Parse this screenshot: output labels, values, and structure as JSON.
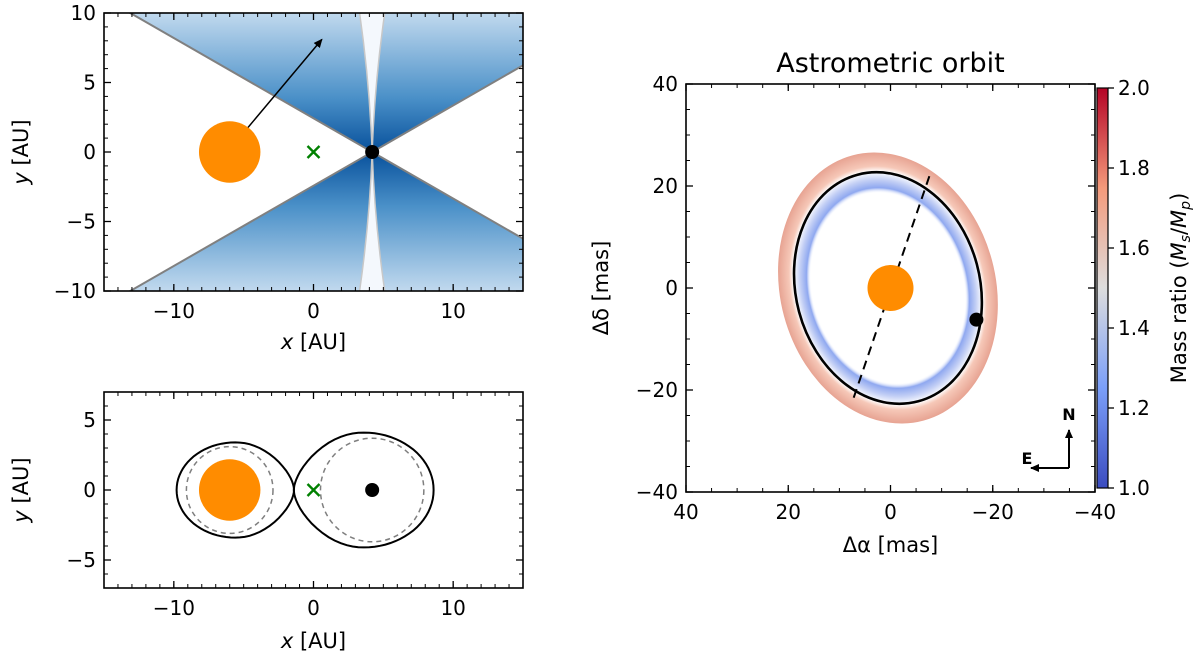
{
  "colors": {
    "star": "#ff8c00",
    "companion": "#000000",
    "center_of_mass": "#008000",
    "wedge_dark": "#08519c",
    "wedge_light": "#c6dbef",
    "roche_solid": "#000000",
    "roche_dashed": "#7f7f7f",
    "cmap_low": "#3b4cc0",
    "cmap_mid": "#dddddd",
    "cmap_high": "#b40426"
  },
  "chart_data": [
    {
      "id": "geometry",
      "type": "scatter",
      "title": "",
      "xlabel": "x [AU]",
      "ylabel": "y [AU]",
      "xlim": [
        -15,
        15
      ],
      "ylim": [
        -10,
        10
      ],
      "xticks": [
        -10,
        0,
        10
      ],
      "yticks": [
        -10,
        -5,
        0,
        5,
        10
      ],
      "tick_labels_x": [
        "−10",
        "0",
        "10"
      ],
      "tick_labels_y": [
        "−10",
        "−5",
        "0",
        "5",
        "10"
      ],
      "xlabel_var": "x",
      "xlabel_unit": " [AU]",
      "ylabel_var": "y",
      "ylabel_unit": " [AU]",
      "star": {
        "x": -6,
        "y": 0,
        "radius": 2.2
      },
      "companion": {
        "x": 4.2,
        "y": 0
      },
      "center_of_mass": {
        "x": 0,
        "y": 0,
        "symbol": "×"
      },
      "arrow": {
        "from": [
          -6,
          0
        ],
        "to": [
          0.6,
          8.1
        ]
      },
      "shadow_wedges": {
        "apex_x": 4.2,
        "apex_y": 0,
        "half_angle_deg": 30,
        "gap_half_width_at_edge": 0.9
      }
    },
    {
      "id": "roche",
      "type": "line",
      "title": "",
      "xlabel": "x [AU]",
      "ylabel": "y [AU]",
      "xlim": [
        -15,
        15
      ],
      "ylim": [
        -7,
        7
      ],
      "xticks": [
        -10,
        0,
        10
      ],
      "yticks": [
        -5,
        0,
        5
      ],
      "tick_labels_x": [
        "−10",
        "0",
        "10"
      ],
      "tick_labels_y": [
        "−5",
        "0",
        "5"
      ],
      "xlabel_var": "x",
      "xlabel_unit": " [AU]",
      "ylabel_var": "y",
      "ylabel_unit": " [AU]",
      "star": {
        "x": -6,
        "y": 0,
        "radius": 2.2
      },
      "companion": {
        "x": 4.2,
        "y": 0
      },
      "center_of_mass": {
        "x": 0,
        "y": 0,
        "symbol": "×"
      },
      "roche_lobe_star": {
        "center_x": -5.6,
        "half_width": 4.2,
        "half_height": 3.4,
        "l1_x": -1.4
      },
      "roche_lobe_companion": {
        "center_x": 3.6,
        "half_width": 5.0,
        "half_height": 4.1,
        "l1_x": -1.4
      },
      "dashed_circle_star": {
        "x": -6,
        "y": 0,
        "r": 3.1
      },
      "dashed_circle_companion": {
        "x": 4.2,
        "y": 0,
        "r": 3.7
      }
    },
    {
      "id": "orbit",
      "type": "line",
      "title": "Astrometric orbit",
      "xlabel": "Δα  [mas]",
      "ylabel": "Δδ  [mas]",
      "xlim": [
        40,
        -40
      ],
      "ylim": [
        -40,
        40
      ],
      "xticks": [
        40,
        20,
        0,
        -20,
        -40
      ],
      "yticks": [
        -40,
        -20,
        0,
        20,
        40
      ],
      "tick_labels_x": [
        "40",
        "20",
        "0",
        "−20",
        "−40"
      ],
      "tick_labels_y": [
        "−40",
        "−20",
        "0",
        "20",
        "40"
      ],
      "orbit": {
        "center": [
          0.5,
          0
        ],
        "a": 23.0,
        "b": 18.0,
        "tilt_deg": -15
      },
      "band": {
        "inner_scale": 0.88,
        "outer_scale": 1.17
      },
      "star": {
        "x": 0,
        "y": 0,
        "radius": 4.5
      },
      "companion": {
        "x": -16.8,
        "y": -6.2
      },
      "line_of_nodes": {
        "from": [
          7.2,
          -21.5
        ],
        "to": [
          -7.8,
          22.5
        ]
      },
      "compass": {
        "N": "N",
        "E": "E"
      },
      "colorbar": {
        "label_prefix": "Mass ratio (",
        "label_var": "M",
        "label_sub_s": "s",
        "label_slash": "/",
        "label_sub_p": "p",
        "label_suffix": ")",
        "min": 1.0,
        "max": 2.0,
        "ticks": [
          1.0,
          1.2,
          1.4,
          1.6,
          1.8,
          2.0
        ],
        "tick_labels": [
          "1.0",
          "1.2",
          "1.4",
          "1.6",
          "1.8",
          "2.0"
        ]
      }
    }
  ]
}
